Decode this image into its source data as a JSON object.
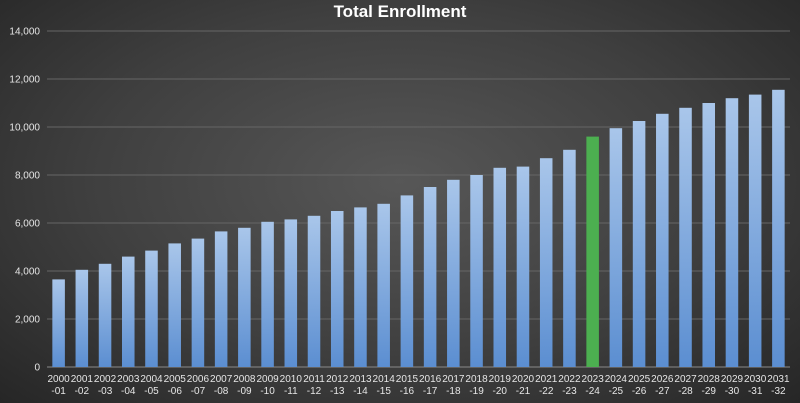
{
  "chart_data": {
    "type": "bar",
    "title": "Total Enrollment",
    "xlabel": "",
    "ylabel": "",
    "ylim": [
      0,
      14000
    ],
    "yticks": [
      0,
      2000,
      4000,
      6000,
      8000,
      10000,
      12000,
      14000
    ],
    "ytick_labels": [
      "0",
      "2,000",
      "4,000",
      "6,000",
      "8,000",
      "10,000",
      "12,000",
      "14,000"
    ],
    "grid": true,
    "highlight_index": 23,
    "colors": {
      "bar_top": "#a9c6ea",
      "bar_bottom": "#5b8ed1",
      "highlight": "#4caf50"
    },
    "categories": [
      [
        "2000",
        "-01"
      ],
      [
        "2001",
        "-02"
      ],
      [
        "2002",
        "-03"
      ],
      [
        "2003",
        "-04"
      ],
      [
        "2004",
        "-05"
      ],
      [
        "2005",
        "-06"
      ],
      [
        "2006",
        "-07"
      ],
      [
        "2007",
        "-08"
      ],
      [
        "2008",
        "-09"
      ],
      [
        "2009",
        "-10"
      ],
      [
        "2010",
        "-11"
      ],
      [
        "2011",
        "-12"
      ],
      [
        "2012",
        "-13"
      ],
      [
        "2013",
        "-14"
      ],
      [
        "2014",
        "-15"
      ],
      [
        "2015",
        "-16"
      ],
      [
        "2016",
        "-17"
      ],
      [
        "2017",
        "-18"
      ],
      [
        "2018",
        "-19"
      ],
      [
        "2019",
        "-20"
      ],
      [
        "2020",
        "-21"
      ],
      [
        "2021",
        "-22"
      ],
      [
        "2022",
        "-23"
      ],
      [
        "2023",
        "-24"
      ],
      [
        "2024",
        "-25"
      ],
      [
        "2025",
        "-26"
      ],
      [
        "2026",
        "-27"
      ],
      [
        "2027",
        "-28"
      ],
      [
        "2028",
        "-29"
      ],
      [
        "2029",
        "-30"
      ],
      [
        "2030",
        "-31"
      ],
      [
        "2031",
        "-32"
      ]
    ],
    "values": [
      3650,
      4050,
      4300,
      4600,
      4850,
      5150,
      5350,
      5650,
      5800,
      6050,
      6150,
      6300,
      6500,
      6650,
      6800,
      7150,
      7500,
      7800,
      8000,
      8300,
      8350,
      8700,
      9050,
      9600,
      9950,
      10250,
      10550,
      10800,
      11000,
      11200,
      11350,
      11550
    ]
  }
}
